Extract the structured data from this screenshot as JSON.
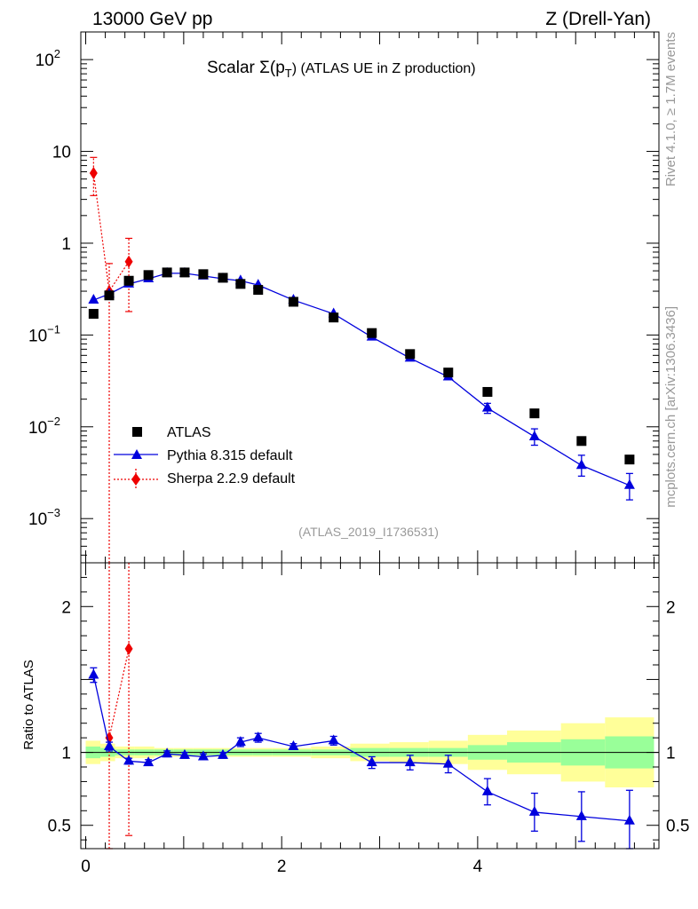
{
  "header": {
    "left": "13000 GeV pp",
    "right": "Z (Drell-Yan)"
  },
  "title": {
    "main": "Scalar Σ(p",
    "sub": "T",
    "rest": ") (ATLAS UE in Z production)"
  },
  "side_labels": {
    "rivet": "Rivet 4.1.0, ≥ 1.7M events",
    "mcplots": "mcplots.cern.ch [arXiv:1306.3436]"
  },
  "analysis_id": "(ATLAS_2019_I1736531)",
  "ratio_ylabel": "Ratio to ATLAS",
  "legend": [
    {
      "label": "ATLAS",
      "color": "#000000",
      "marker": "square"
    },
    {
      "label": "Pythia 8.315 default",
      "color": "#0000dd",
      "marker": "triangle"
    },
    {
      "label": "Sherpa 2.2.9 default",
      "color": "#ee0000",
      "marker": "diamond"
    }
  ],
  "top_tick_labels": [
    {
      "v": 100,
      "base": "10",
      "exp": "2"
    },
    {
      "v": 10,
      "base": "10",
      "exp": ""
    },
    {
      "v": 1,
      "base": "1",
      "exp": ""
    },
    {
      "v": 0.1,
      "base": "10",
      "exp": "−1"
    },
    {
      "v": 0.01,
      "base": "10",
      "exp": "−2"
    },
    {
      "v": 0.001,
      "base": "10",
      "exp": "−3"
    }
  ],
  "ratio_tick_labels": [
    {
      "v": 2,
      "t": "2"
    },
    {
      "v": 1,
      "t": "1"
    },
    {
      "v": 0.5,
      "t": "0.5"
    }
  ],
  "x_tick_labels": [
    {
      "v": 0,
      "t": "0"
    },
    {
      "v": 2,
      "t": "2"
    },
    {
      "v": 4,
      "t": "4"
    }
  ],
  "chart_data": {
    "type": "scatter",
    "title": "Scalar Σ(pT) (ATLAS UE in Z production)",
    "xlim": [
      -0.05,
      5.85
    ],
    "ylim_top": [
      0.00033,
      200
    ],
    "ylim_ratio": [
      0.34,
      2.3
    ],
    "y_scale_top": "log",
    "bins": [
      [
        0.0,
        0.15
      ],
      [
        0.15,
        0.3
      ],
      [
        0.3,
        0.5
      ],
      [
        0.5,
        0.7
      ],
      [
        0.7,
        0.9
      ],
      [
        0.9,
        1.1
      ],
      [
        1.1,
        1.3
      ],
      [
        1.3,
        1.5
      ],
      [
        1.5,
        1.7
      ],
      [
        1.7,
        1.9
      ],
      [
        1.9,
        2.3
      ],
      [
        2.3,
        2.7
      ],
      [
        2.7,
        3.1
      ],
      [
        3.1,
        3.5
      ],
      [
        3.5,
        3.9
      ],
      [
        3.9,
        4.3
      ],
      [
        4.3,
        4.85
      ],
      [
        4.85,
        5.3
      ],
      [
        5.3,
        5.8
      ]
    ],
    "series": [
      {
        "name": "ATLAS",
        "x": [
          0.08,
          0.24,
          0.44,
          0.64,
          0.83,
          1.01,
          1.2,
          1.4,
          1.58,
          1.76,
          2.12,
          2.53,
          2.92,
          3.31,
          3.7,
          4.1,
          4.58,
          5.06,
          5.55
        ],
        "y": [
          0.17,
          0.27,
          0.39,
          0.45,
          0.48,
          0.48,
          0.46,
          0.42,
          0.36,
          0.31,
          0.23,
          0.155,
          0.105,
          0.062,
          0.039,
          0.024,
          0.014,
          0.007,
          0.0044
        ],
        "err_inner": [
          0.04,
          0.03,
          0.02,
          0.02,
          0.02,
          0.02,
          0.02,
          0.02,
          0.02,
          0.02,
          0.02,
          0.02,
          0.03,
          0.03,
          0.03,
          0.05,
          0.07,
          0.09,
          0.11
        ],
        "err_outer": [
          0.08,
          0.06,
          0.04,
          0.04,
          0.03,
          0.03,
          0.03,
          0.03,
          0.03,
          0.03,
          0.03,
          0.04,
          0.06,
          0.07,
          0.08,
          0.12,
          0.15,
          0.2,
          0.24
        ]
      },
      {
        "name": "Pythia 8.315 default",
        "x": [
          0.08,
          0.24,
          0.44,
          0.64,
          0.83,
          1.01,
          1.2,
          1.4,
          1.58,
          1.76,
          2.12,
          2.53,
          2.92,
          3.31,
          3.7,
          4.1,
          4.58,
          5.06,
          5.55
        ],
        "y": [
          0.24,
          0.28,
          0.36,
          0.41,
          0.47,
          0.47,
          0.44,
          0.41,
          0.39,
          0.35,
          0.24,
          0.17,
          0.095,
          0.056,
          0.035,
          0.016,
          0.0078,
          0.0038,
          0.0023
        ],
        "y_err_low": [
          0.0,
          0.0,
          0.0,
          0.0,
          0.0,
          0.0,
          0.0,
          0.0,
          0.0,
          0.0,
          0.0,
          0.0,
          0.0,
          0.0,
          0.0,
          0.002,
          0.0015,
          0.0009,
          0.0007
        ],
        "y_err_high": [
          0.0,
          0.0,
          0.0,
          0.0,
          0.0,
          0.0,
          0.0,
          0.0,
          0.0,
          0.0,
          0.0,
          0.0,
          0.0,
          0.0,
          0.0,
          0.002,
          0.0017,
          0.0011,
          0.0008
        ],
        "ratio": [
          1.53,
          1.04,
          0.94,
          0.93,
          0.99,
          0.98,
          0.97,
          0.98,
          1.07,
          1.1,
          1.04,
          1.08,
          0.93,
          0.93,
          0.92,
          0.73,
          0.59,
          0.56,
          0.53
        ],
        "ratio_err": [
          0.05,
          0.03,
          0.02,
          0.02,
          0.02,
          0.02,
          0.02,
          0.02,
          0.03,
          0.03,
          0.02,
          0.03,
          0.04,
          0.05,
          0.06,
          0.09,
          0.13,
          0.17,
          0.21
        ]
      },
      {
        "name": "Sherpa 2.2.9 default",
        "x": [
          0.08,
          0.24,
          0.44
        ],
        "y": [
          5.8,
          0.3,
          0.63
        ],
        "y_err_low": [
          2.5,
          0.3,
          0.45
        ],
        "y_err_high": [
          2.8,
          0.3,
          0.5
        ],
        "ratio": [
          null,
          1.1,
          1.71
        ],
        "ratio_err_low": [
          null,
          1.1,
          1.28
        ],
        "ratio_err_high": [
          null,
          1.2,
          1.5
        ]
      }
    ]
  }
}
